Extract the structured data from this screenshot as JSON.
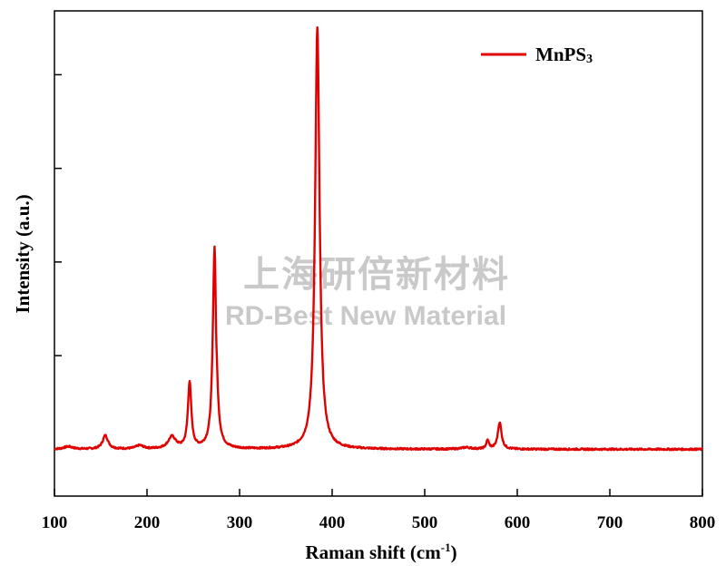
{
  "chart_data": {
    "type": "line",
    "title": "",
    "xlabel": "Raman shift (cm",
    "xlabel_sup": "-1",
    "xlabel_end": ")",
    "ylabel": "Intensity (a.u.)",
    "xlim": [
      100,
      800
    ],
    "ylim": [
      -0.11,
      1.03
    ],
    "x_ticks": [
      100,
      200,
      300,
      400,
      500,
      600,
      700,
      800
    ],
    "x_tick_labels": [
      "100",
      "200",
      "300",
      "400",
      "500",
      "600",
      "700",
      "800"
    ],
    "y_ticks": [
      0.0,
      0.22,
      0.44,
      0.66,
      0.88
    ],
    "y_tick_labels_visible": false,
    "grid": false,
    "legend_position": "top-right",
    "series": [
      {
        "name": "MnPS",
        "name_sub": "3",
        "color": "#e00000",
        "baseline": 0.0,
        "peaks": [
          {
            "x": 115,
            "height": 0.006,
            "width": 6
          },
          {
            "x": 155,
            "height": 0.032,
            "width": 3.5
          },
          {
            "x": 192,
            "height": 0.008,
            "width": 5
          },
          {
            "x": 227,
            "height": 0.028,
            "width": 5
          },
          {
            "x": 246,
            "height": 0.155,
            "width": 2.2
          },
          {
            "x": 273,
            "height": 0.475,
            "width": 2.3
          },
          {
            "x": 384,
            "height": 0.99,
            "width": 2.9
          },
          {
            "x": 545,
            "height": 0.004,
            "width": 6
          },
          {
            "x": 568,
            "height": 0.02,
            "width": 1.8
          },
          {
            "x": 581,
            "height": 0.063,
            "width": 2.4
          }
        ],
        "dip": {
          "x": 274.5,
          "depth": 0.04,
          "width": 0.8
        }
      }
    ]
  },
  "watermark": {
    "chinese": "上海研倍新材料",
    "english": "RD-Best New Material"
  }
}
